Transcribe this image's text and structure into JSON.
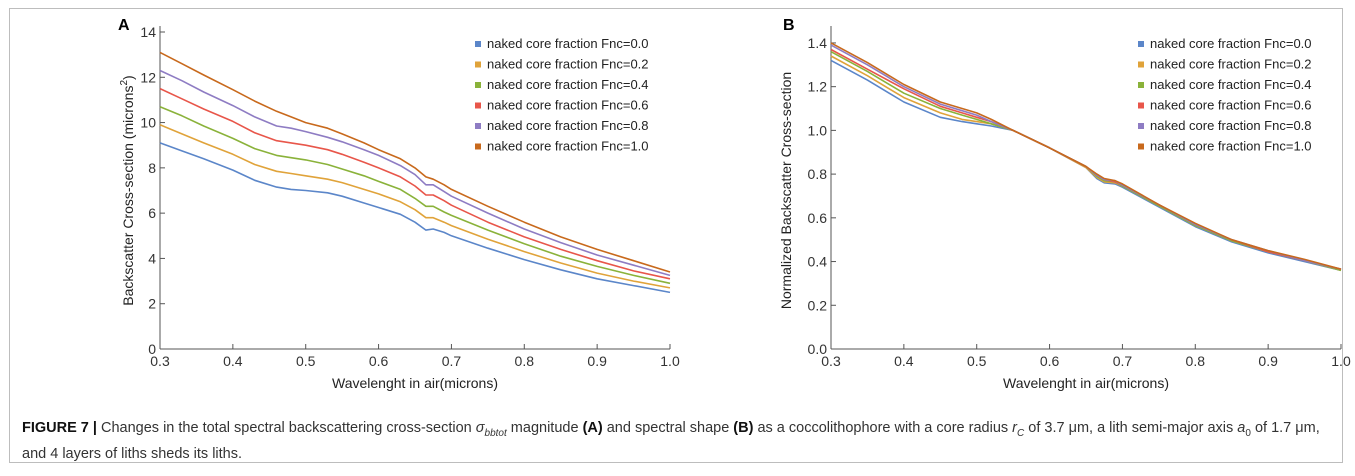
{
  "chart_data": [
    {
      "panel": "A",
      "type": "line",
      "xlabel": "Wavelenght in air(microns)",
      "ylabel": "Backscatter Cross-section (microns",
      "ylabel_sup": "2",
      "ylabel_close": ")",
      "xlim": [
        0.3,
        1.0
      ],
      "ylim": [
        0,
        14
      ],
      "xticks": [
        0.3,
        0.4,
        0.5,
        0.6,
        0.7,
        0.8,
        0.9,
        1.0
      ],
      "xtick_labels": [
        "0.3",
        "0.4",
        "0.5",
        "0.6",
        "0.7",
        "0.8",
        "0.9",
        "1.0"
      ],
      "yticks": [
        0,
        2,
        4,
        6,
        8,
        10,
        12,
        14
      ],
      "ytick_labels": [
        "0",
        "2",
        "4",
        "6",
        "8",
        "10",
        "12",
        "14"
      ],
      "legend_position": "top-right",
      "x": [
        0.3,
        0.33,
        0.36,
        0.4,
        0.43,
        0.46,
        0.48,
        0.5,
        0.53,
        0.55,
        0.58,
        0.6,
        0.63,
        0.65,
        0.665,
        0.675,
        0.69,
        0.7,
        0.75,
        0.8,
        0.85,
        0.9,
        0.95,
        1.0
      ],
      "series": [
        {
          "name": "naked core fraction Fnc=0.0",
          "color": "#5b86c9",
          "values": [
            9.1,
            8.75,
            8.4,
            7.9,
            7.45,
            7.15,
            7.05,
            7.0,
            6.9,
            6.75,
            6.45,
            6.25,
            5.95,
            5.6,
            5.25,
            5.3,
            5.15,
            5.0,
            4.45,
            3.95,
            3.5,
            3.1,
            2.8,
            2.5
          ]
        },
        {
          "name": "naked core fraction Fnc=0.2",
          "color": "#e0a33a",
          "values": [
            9.9,
            9.5,
            9.1,
            8.6,
            8.15,
            7.85,
            7.75,
            7.65,
            7.5,
            7.35,
            7.05,
            6.85,
            6.5,
            6.15,
            5.8,
            5.8,
            5.6,
            5.45,
            4.85,
            4.3,
            3.8,
            3.35,
            3.0,
            2.7
          ]
        },
        {
          "name": "naked core fraction Fnc=0.4",
          "color": "#8ab23a",
          "values": [
            10.7,
            10.3,
            9.85,
            9.3,
            8.85,
            8.55,
            8.45,
            8.35,
            8.15,
            7.95,
            7.65,
            7.4,
            7.05,
            6.65,
            6.3,
            6.3,
            6.05,
            5.9,
            5.25,
            4.65,
            4.1,
            3.65,
            3.25,
            2.9
          ]
        },
        {
          "name": "naked core fraction Fnc=0.6",
          "color": "#e8564a",
          "values": [
            11.5,
            11.05,
            10.6,
            10.05,
            9.55,
            9.2,
            9.1,
            9.0,
            8.8,
            8.6,
            8.25,
            8.0,
            7.6,
            7.2,
            6.8,
            6.8,
            6.55,
            6.35,
            5.6,
            4.95,
            4.4,
            3.9,
            3.45,
            3.1
          ]
        },
        {
          "name": "naked core fraction Fnc=0.8",
          "color": "#8e7cc3",
          "values": [
            12.3,
            11.85,
            11.35,
            10.75,
            10.25,
            9.85,
            9.75,
            9.6,
            9.35,
            9.15,
            8.8,
            8.55,
            8.1,
            7.7,
            7.25,
            7.25,
            6.95,
            6.75,
            6.0,
            5.3,
            4.7,
            4.15,
            3.7,
            3.25
          ]
        },
        {
          "name": "naked core fraction Fnc=1.0",
          "color": "#c8691c",
          "values": [
            13.1,
            12.6,
            12.1,
            11.45,
            10.95,
            10.5,
            10.25,
            10.0,
            9.75,
            9.5,
            9.1,
            8.8,
            8.4,
            8.0,
            7.6,
            7.5,
            7.25,
            7.05,
            6.3,
            5.6,
            4.95,
            4.4,
            3.9,
            3.4
          ]
        }
      ]
    },
    {
      "panel": "B",
      "type": "line",
      "xlabel": "Wavelenght in air(microns)",
      "ylabel": "Normalized Backscatter Cross-section",
      "xlim": [
        0.3,
        1.0
      ],
      "ylim": [
        0,
        1.45
      ],
      "xticks": [
        0.3,
        0.4,
        0.5,
        0.6,
        0.7,
        0.8,
        0.9,
        1.0
      ],
      "xtick_labels": [
        "0.3",
        "0.4",
        "0.5",
        "0.6",
        "0.7",
        "0.8",
        "0.9",
        "1.0"
      ],
      "yticks": [
        0,
        0.2,
        0.4,
        0.6,
        0.8,
        1.0,
        1.2,
        1.4
      ],
      "ytick_labels": [
        "0.0",
        "0.2",
        "0.4",
        "0.6",
        "0.8",
        "1.0",
        "1.2",
        "1.4"
      ],
      "legend_position": "top-right",
      "x": [
        0.3,
        0.35,
        0.4,
        0.45,
        0.48,
        0.5,
        0.52,
        0.55,
        0.6,
        0.65,
        0.665,
        0.675,
        0.69,
        0.7,
        0.75,
        0.8,
        0.85,
        0.9,
        0.95,
        1.0
      ],
      "series": [
        {
          "name": "naked core fraction Fnc=0.0",
          "color": "#5b86c9",
          "values": [
            1.32,
            1.23,
            1.13,
            1.06,
            1.04,
            1.03,
            1.02,
            1.0,
            0.92,
            0.83,
            0.78,
            0.76,
            0.755,
            0.74,
            0.65,
            0.56,
            0.49,
            0.44,
            0.4,
            0.36
          ]
        },
        {
          "name": "naked core fraction Fnc=0.2",
          "color": "#e0a33a",
          "values": [
            1.34,
            1.25,
            1.15,
            1.08,
            1.05,
            1.04,
            1.03,
            1.0,
            0.92,
            0.83,
            0.785,
            0.765,
            0.76,
            0.745,
            0.655,
            0.565,
            0.495,
            0.445,
            0.405,
            0.36
          ]
        },
        {
          "name": "naked core fraction Fnc=0.4",
          "color": "#8ab23a",
          "values": [
            1.36,
            1.27,
            1.17,
            1.1,
            1.07,
            1.05,
            1.03,
            1.0,
            0.92,
            0.835,
            0.79,
            0.77,
            0.765,
            0.745,
            0.655,
            0.565,
            0.495,
            0.445,
            0.405,
            0.36
          ]
        },
        {
          "name": "naked core fraction Fnc=0.6",
          "color": "#e8564a",
          "values": [
            1.37,
            1.28,
            1.19,
            1.11,
            1.08,
            1.06,
            1.04,
            1.0,
            0.92,
            0.835,
            0.795,
            0.775,
            0.765,
            0.75,
            0.66,
            0.57,
            0.5,
            0.445,
            0.405,
            0.365
          ]
        },
        {
          "name": "naked core fraction Fnc=0.8",
          "color": "#8e7cc3",
          "values": [
            1.39,
            1.3,
            1.2,
            1.12,
            1.09,
            1.07,
            1.04,
            1.0,
            0.92,
            0.835,
            0.795,
            0.775,
            0.77,
            0.75,
            0.66,
            0.57,
            0.5,
            0.45,
            0.405,
            0.365
          ]
        },
        {
          "name": "naked core fraction Fnc=1.0",
          "color": "#c8691c",
          "values": [
            1.4,
            1.31,
            1.21,
            1.13,
            1.1,
            1.08,
            1.05,
            1.0,
            0.92,
            0.835,
            0.8,
            0.78,
            0.77,
            0.755,
            0.66,
            0.575,
            0.5,
            0.45,
            0.41,
            0.365
          ]
        }
      ]
    }
  ],
  "caption": {
    "figure_label": "FIGURE 7 |",
    "sigma": "σ",
    "sigma_sub": "bbtot",
    "t1": " Changes in the total spectral backscattering cross-section ",
    "t2": " magnitude ",
    "panel_a": "(A)",
    "t3": " and spectral shape ",
    "panel_b": "(B)",
    "t4": " as a coccolithophore with a core radius ",
    "rc": "r",
    "rc_sub": "C",
    "t5": " of 3.7 μm, a lith semi-major axis ",
    "a0": "a",
    "a0_sub": "0",
    "t6": " of 1.7 μm, and 4 layers of liths sheds its liths."
  }
}
